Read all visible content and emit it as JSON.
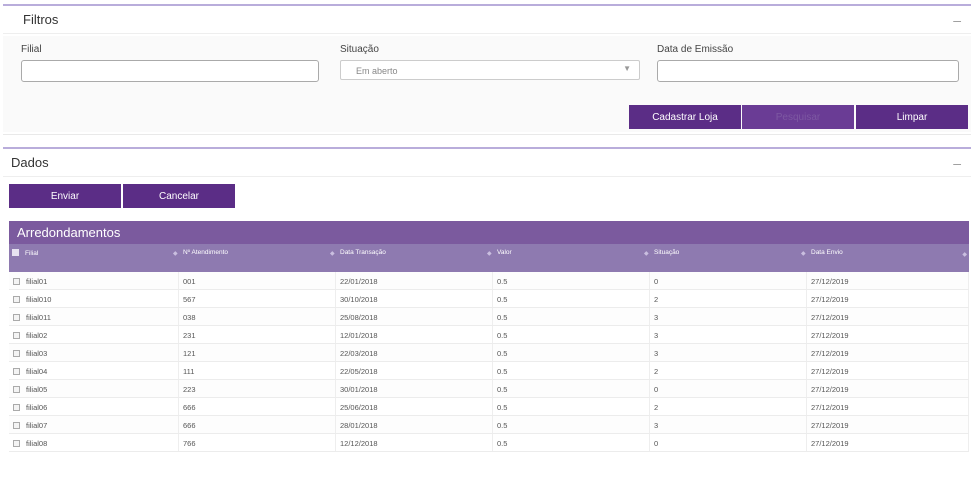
{
  "filters": {
    "title": "Filtros",
    "filial_label": "Filial",
    "filial_value": "",
    "situacao_label": "Situação",
    "situacao_value": "Em aberto",
    "data_label": "Data de Emissão",
    "data_value": "",
    "cadastrar_label": "Cadastrar Loja",
    "pesquisar_label": "Pesquisar",
    "limpar_label": "Limpar"
  },
  "dados": {
    "title": "Dados",
    "enviar_label": "Enviar",
    "cancelar_label": "Cancelar"
  },
  "grid": {
    "title": "Arredondamentos",
    "columns": [
      "Filial",
      "Nº Atendimento",
      "Data Transação",
      "Valor",
      "Situação",
      "Data Envio"
    ],
    "rows": [
      [
        "filial01",
        "001",
        "22/01/2018",
        "0.5",
        "0",
        "27/12/2019"
      ],
      [
        "filial010",
        "567",
        "30/10/2018",
        "0.5",
        "2",
        "27/12/2019"
      ],
      [
        "filial011",
        "038",
        "25/08/2018",
        "0.5",
        "3",
        "27/12/2019"
      ],
      [
        "filial02",
        "231",
        "12/01/2018",
        "0.5",
        "3",
        "27/12/2019"
      ],
      [
        "filial03",
        "121",
        "22/03/2018",
        "0.5",
        "3",
        "27/12/2019"
      ],
      [
        "filial04",
        "111",
        "22/05/2018",
        "0.5",
        "2",
        "27/12/2019"
      ],
      [
        "filial05",
        "223",
        "30/01/2018",
        "0.5",
        "0",
        "27/12/2019"
      ],
      [
        "filial06",
        "666",
        "25/06/2018",
        "0.5",
        "2",
        "27/12/2019"
      ],
      [
        "filial07",
        "666",
        "28/01/2018",
        "0.5",
        "3",
        "27/12/2019"
      ],
      [
        "filial08",
        "766",
        "12/12/2018",
        "0.5",
        "0",
        "27/12/2019"
      ]
    ]
  },
  "colors": {
    "accent": "#5b2d86",
    "grid_title_bg": "#7b5a9e",
    "grid_header_bg": "#8e7ab0"
  },
  "icons": {
    "collapse": "minus-icon",
    "sort": "sort-icon",
    "select": "chevron-down-icon"
  }
}
